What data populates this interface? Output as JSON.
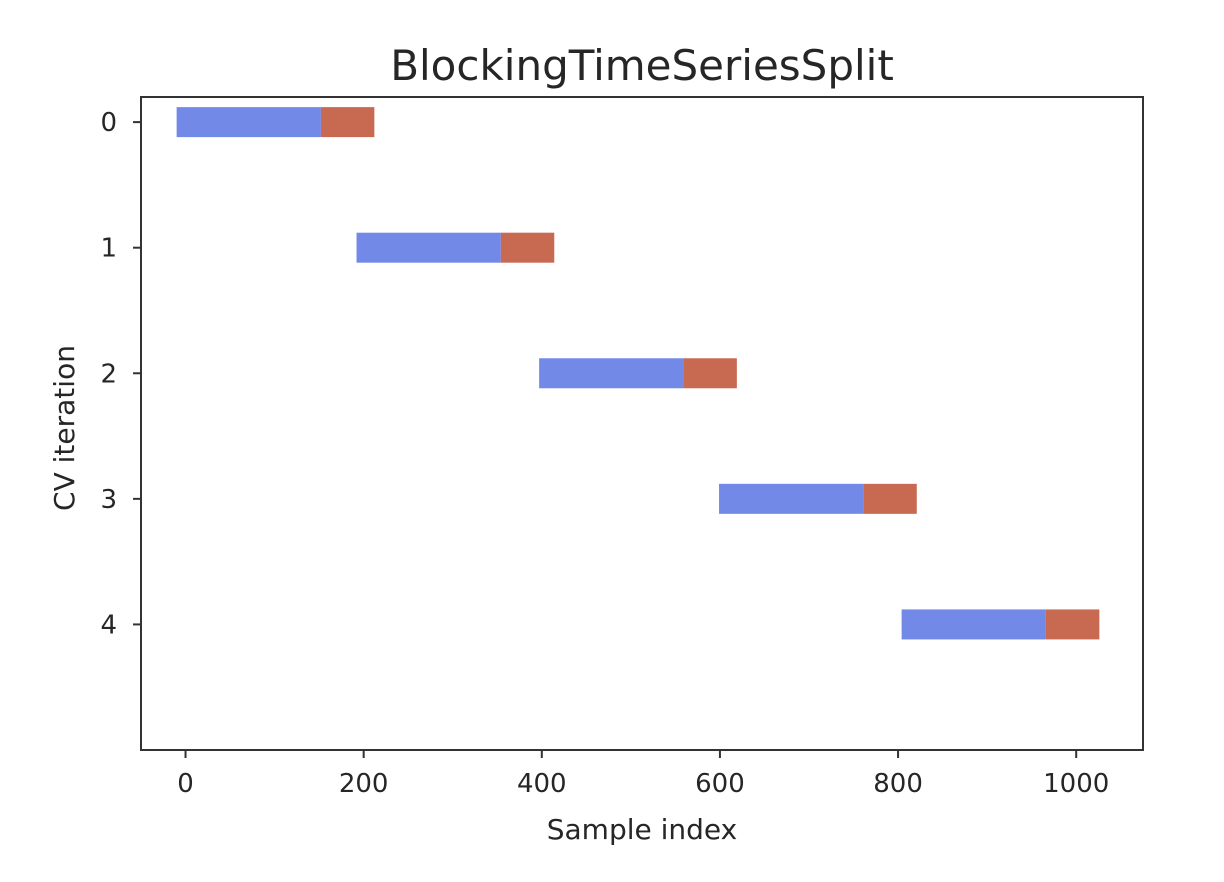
{
  "chart_data": {
    "type": "bar",
    "orientation": "horizontal",
    "title": "BlockingTimeSeriesSplit",
    "xlabel": "Sample index",
    "ylabel": "CV iteration",
    "xlim": [
      -50,
      1075
    ],
    "ylim": [
      -0.2,
      5.0
    ],
    "y_inverted": true,
    "grid": false,
    "xticks": [
      0,
      200,
      400,
      600,
      800,
      1000
    ],
    "yticks": [
      0,
      1,
      2,
      3,
      4
    ],
    "colors": {
      "train": "#7389e8",
      "test": "#c86a52"
    },
    "series": [
      {
        "segments": [
          {
            "iteration": 0,
            "start": -10,
            "end": 152
          },
          {
            "iteration": 1,
            "start": 192,
            "end": 354
          },
          {
            "iteration": 2,
            "start": 397,
            "end": 559
          },
          {
            "iteration": 3,
            "start": 599,
            "end": 761
          },
          {
            "iteration": 4,
            "start": 804,
            "end": 966
          }
        ],
        "color_key": "train"
      },
      {
        "segments": [
          {
            "iteration": 0,
            "start": 152,
            "end": 212
          },
          {
            "iteration": 1,
            "start": 354,
            "end": 414
          },
          {
            "iteration": 2,
            "start": 559,
            "end": 619
          },
          {
            "iteration": 3,
            "start": 761,
            "end": 821
          },
          {
            "iteration": 4,
            "start": 966,
            "end": 1026
          }
        ],
        "color_key": "test"
      }
    ]
  }
}
